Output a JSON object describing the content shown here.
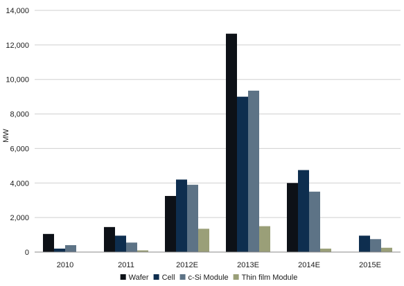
{
  "chart_data": {
    "type": "bar",
    "title": "",
    "xlabel": "",
    "ylabel": "MW",
    "ylim": [
      0,
      14000
    ],
    "yticks": [
      0,
      2000,
      4000,
      6000,
      8000,
      10000,
      12000,
      14000
    ],
    "ytick_labels": [
      "0",
      "2,000",
      "4,000",
      "6,000",
      "8,000",
      "10,000",
      "12,000",
      "14,000"
    ],
    "grid": true,
    "legend_position": "bottom",
    "categories": [
      "2010",
      "2011",
      "2012E",
      "2013E",
      "2014E",
      "2015E"
    ],
    "series": [
      {
        "name": "Wafer",
        "color": "#0d1117",
        "values": [
          1050,
          1450,
          3250,
          12650,
          4000,
          0
        ]
      },
      {
        "name": "Cell",
        "color": "#0e2e4f",
        "values": [
          200,
          950,
          4200,
          9000,
          4750,
          950
        ]
      },
      {
        "name": "c-Si Module",
        "color": "#5d7386",
        "values": [
          400,
          550,
          3900,
          9350,
          3500,
          750
        ]
      },
      {
        "name": "Thin film Module",
        "color": "#9a9f78",
        "values": [
          0,
          100,
          1350,
          1500,
          200,
          250
        ]
      }
    ]
  }
}
